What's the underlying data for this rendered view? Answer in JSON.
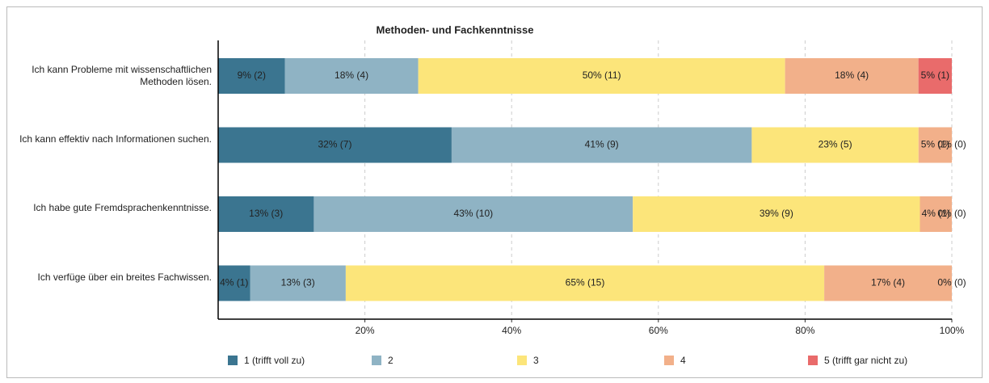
{
  "chart_data": {
    "type": "stacked_barh",
    "title": "Methoden- und Fachkenntnisse",
    "categories": [
      "Ich kann Probleme mit wissenschaftlichen Methoden lösen.",
      "Ich kann effektiv nach Informationen suchen.",
      "Ich habe gute Fremdsprachenkenntnisse.",
      "Ich verfüge über ein breites Fachwissen."
    ],
    "series": [
      {
        "name": "1 (trifft voll zu)",
        "color": "#3b7590",
        "values": [
          9.09,
          31.82,
          13.04,
          4.35
        ],
        "value_labels": [
          "9% (2)",
          "32% (7)",
          "13% (3)",
          "4% (1)"
        ]
      },
      {
        "name": "2",
        "color": "#8fb3c4",
        "values": [
          18.18,
          40.91,
          43.48,
          13.04
        ],
        "value_labels": [
          "18% (4)",
          "41% (9)",
          "43% (10)",
          "13% (3)"
        ]
      },
      {
        "name": "3",
        "color": "#fce57a",
        "values": [
          50,
          22.73,
          39.13,
          65.22
        ],
        "value_labels": [
          "50% (11)",
          "23% (5)",
          "39% (9)",
          "65% (15)"
        ]
      },
      {
        "name": "4",
        "color": "#f2b08a",
        "values": [
          18.18,
          4.55,
          4.35,
          17.39
        ],
        "value_labels": [
          "18% (4)",
          "5% (1)",
          "4% (1)",
          "17% (4)"
        ]
      },
      {
        "name": "5 (trifft gar nicht zu)",
        "color": "#e96b6b",
        "values": [
          4.55,
          0,
          0,
          0
        ],
        "value_labels": [
          "5% (1)",
          "0% (0)",
          "0% (0)",
          "0% (0)"
        ]
      }
    ],
    "xlim": [
      0,
      100
    ],
    "xticks": [
      {
        "value": 20,
        "label": "20%"
      },
      {
        "value": 40,
        "label": "40%"
      },
      {
        "value": 60,
        "label": "60%"
      },
      {
        "value": 80,
        "label": "80%"
      },
      {
        "value": 100,
        "label": "100%"
      }
    ],
    "grid": true,
    "legend": "bottom"
  }
}
